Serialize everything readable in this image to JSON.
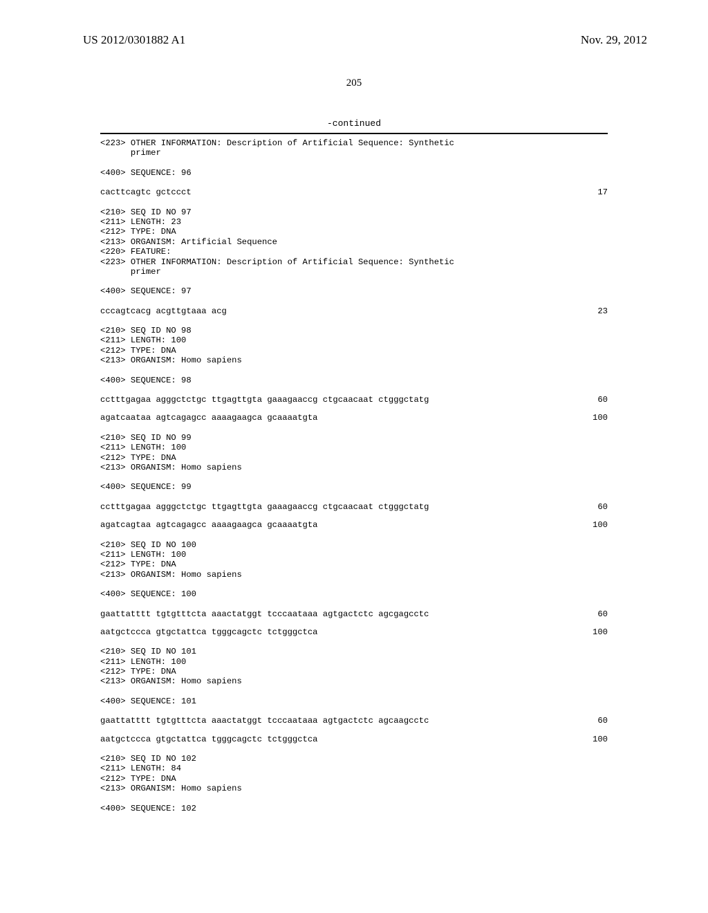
{
  "header": {
    "left": "US 2012/0301882 A1",
    "right": "Nov. 29, 2012"
  },
  "page_number": "205",
  "continued": "-continued",
  "entries": [
    {
      "lines": [
        "<223> OTHER INFORMATION: Description of Artificial Sequence: Synthetic",
        "      primer"
      ]
    },
    {
      "lines": [
        "<400> SEQUENCE: 96"
      ]
    },
    {
      "seq": [
        {
          "text": "cacttcagtc gctccct",
          "num": "17"
        }
      ]
    },
    {
      "lines": [
        "<210> SEQ ID NO 97",
        "<211> LENGTH: 23",
        "<212> TYPE: DNA",
        "<213> ORGANISM: Artificial Sequence",
        "<220> FEATURE:",
        "<223> OTHER INFORMATION: Description of Artificial Sequence: Synthetic",
        "      primer"
      ]
    },
    {
      "lines": [
        "<400> SEQUENCE: 97"
      ]
    },
    {
      "seq": [
        {
          "text": "cccagtcacg acgttgtaaa acg",
          "num": "23"
        }
      ]
    },
    {
      "lines": [
        "<210> SEQ ID NO 98",
        "<211> LENGTH: 100",
        "<212> TYPE: DNA",
        "<213> ORGANISM: Homo sapiens"
      ]
    },
    {
      "lines": [
        "<400> SEQUENCE: 98"
      ]
    },
    {
      "seq": [
        {
          "text": "cctttgagaa agggctctgc ttgagttgta gaaagaaccg ctgcaacaat ctgggctatg",
          "num": "60"
        },
        {
          "text": "agatcaataa agtcagagcc aaaagaagca gcaaaatgta",
          "num": "100"
        }
      ]
    },
    {
      "lines": [
        "<210> SEQ ID NO 99",
        "<211> LENGTH: 100",
        "<212> TYPE: DNA",
        "<213> ORGANISM: Homo sapiens"
      ]
    },
    {
      "lines": [
        "<400> SEQUENCE: 99"
      ]
    },
    {
      "seq": [
        {
          "text": "cctttgagaa agggctctgc ttgagttgta gaaagaaccg ctgcaacaat ctgggctatg",
          "num": "60"
        },
        {
          "text": "agatcagtaa agtcagagcc aaaagaagca gcaaaatgta",
          "num": "100"
        }
      ]
    },
    {
      "lines": [
        "<210> SEQ ID NO 100",
        "<211> LENGTH: 100",
        "<212> TYPE: DNA",
        "<213> ORGANISM: Homo sapiens"
      ]
    },
    {
      "lines": [
        "<400> SEQUENCE: 100"
      ]
    },
    {
      "seq": [
        {
          "text": "gaattatttt tgtgtttcta aaactatggt tcccaataaa agtgactctc agcgagcctc",
          "num": "60"
        },
        {
          "text": "aatgctccca gtgctattca tgggcagctc tctgggctca",
          "num": "100"
        }
      ]
    },
    {
      "lines": [
        "<210> SEQ ID NO 101",
        "<211> LENGTH: 100",
        "<212> TYPE: DNA",
        "<213> ORGANISM: Homo sapiens"
      ]
    },
    {
      "lines": [
        "<400> SEQUENCE: 101"
      ]
    },
    {
      "seq": [
        {
          "text": "gaattatttt tgtgtttcta aaactatggt tcccaataaa agtgactctc agcaagcctc",
          "num": "60"
        },
        {
          "text": "aatgctccca gtgctattca tgggcagctc tctgggctca",
          "num": "100"
        }
      ]
    },
    {
      "lines": [
        "<210> SEQ ID NO 102",
        "<211> LENGTH: 84",
        "<212> TYPE: DNA",
        "<213> ORGANISM: Homo sapiens"
      ]
    },
    {
      "lines": [
        "<400> SEQUENCE: 102"
      ]
    }
  ]
}
